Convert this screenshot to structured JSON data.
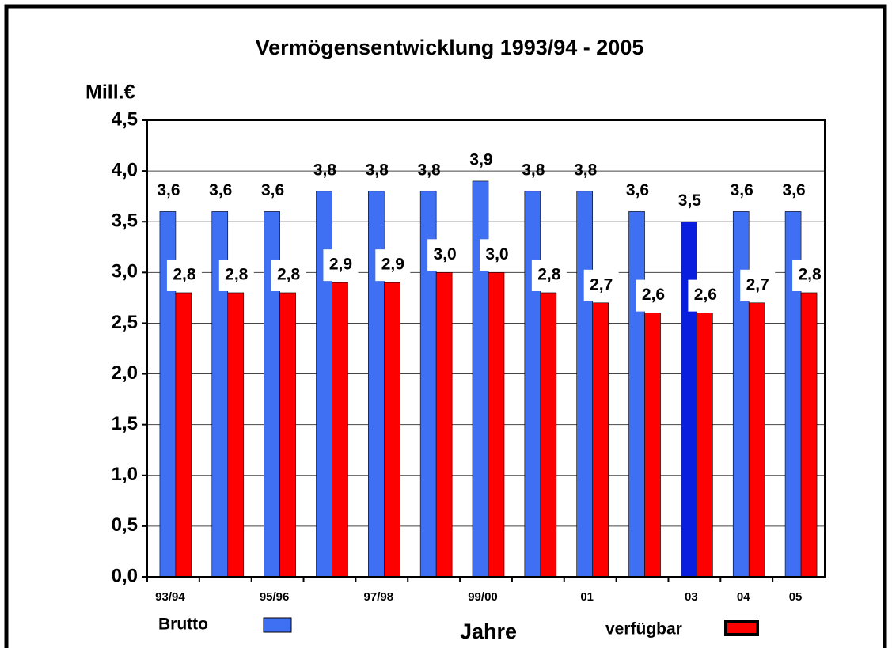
{
  "chart_data": {
    "type": "bar",
    "title": "Vermögensentwicklung  1993/94 - 2005",
    "y_label": "Mill.€",
    "x_label": "Jahre",
    "categories": [
      "93/94",
      null,
      "95/96",
      null,
      "97/98",
      null,
      "99/00",
      null,
      "01",
      null,
      "03",
      "04",
      "05"
    ],
    "category_colors": [
      "#000000",
      "#000000",
      "#000000",
      "#000000",
      "#000000",
      "#000000",
      "#000000",
      "#000000",
      "#000000",
      "#000000",
      "#000000",
      "#ff0000",
      "#000000"
    ],
    "series": [
      {
        "name": "Brutto",
        "color": "#3f6ff2",
        "colors": [
          "#3f6ff2",
          "#3f6ff2",
          "#3f6ff2",
          "#3f6ff2",
          "#3f6ff2",
          "#3f6ff2",
          "#3f6ff2",
          "#3f6ff2",
          "#3f6ff2",
          "#3f6ff2",
          "#0a1ee0",
          "#3f6ff2",
          "#3f6ff2"
        ],
        "values": [
          3.6,
          3.6,
          3.6,
          3.8,
          3.8,
          3.8,
          3.9,
          3.8,
          3.8,
          3.6,
          3.5,
          3.6,
          3.6
        ],
        "value_labels": [
          "3,6",
          "3,6",
          "3,6",
          "3,8",
          "3,8",
          "3,8",
          "3,9",
          "3,8",
          "3,8",
          "3,6",
          "3,5",
          "3,6",
          "3,6"
        ],
        "value_label_colors": [
          "#000000",
          "#000000",
          "#000000",
          "#000000",
          "#000000",
          "#000000",
          "#000000",
          "#000000",
          "#000000",
          "#000000",
          "#000000",
          "#000000",
          "#1a1aff"
        ]
      },
      {
        "name": "verfügbar",
        "color": "#ff0000",
        "colors": [
          "#ff0000",
          "#ff0000",
          "#ff0000",
          "#ff0000",
          "#ff0000",
          "#ff0000",
          "#ff0000",
          "#ff0000",
          "#ff0000",
          "#ff0000",
          "#ff0000",
          "#ff0000",
          "#ff0000"
        ],
        "values": [
          2.8,
          2.8,
          2.8,
          2.9,
          2.9,
          3.0,
          3.0,
          2.8,
          2.7,
          2.6,
          2.6,
          2.7,
          2.8
        ],
        "value_labels": [
          "2,8",
          "2,8",
          "2,8",
          "2,9",
          "2,9",
          "3,0",
          "3,0",
          "2,8",
          "2,7",
          "2,6",
          "2,6",
          "2,7",
          "2,8"
        ],
        "value_label_colors": [
          "#000000",
          "#000000",
          "#000000",
          "#000000",
          "#000000",
          "#000000",
          "#000000",
          "#000000",
          "#000000",
          "#000000",
          "#000000",
          "#000000",
          "#ff0000"
        ]
      }
    ],
    "ylim": [
      0,
      4.5
    ],
    "yticks": [
      {
        "value": 0,
        "label": "0,0"
      },
      {
        "value": 0.5,
        "label": "0,5"
      },
      {
        "value": 1,
        "label": "1,0"
      },
      {
        "value": 1.5,
        "label": "1,5"
      },
      {
        "value": 2,
        "label": "2,0"
      },
      {
        "value": 2.5,
        "label": "2,5"
      },
      {
        "value": 3,
        "label": "3,0"
      },
      {
        "value": 3.5,
        "label": "3,5"
      },
      {
        "value": 4,
        "label": "4,0"
      },
      {
        "value": 4.5,
        "label": "4,5"
      }
    ],
    "grid": true,
    "legend": "bottom"
  }
}
